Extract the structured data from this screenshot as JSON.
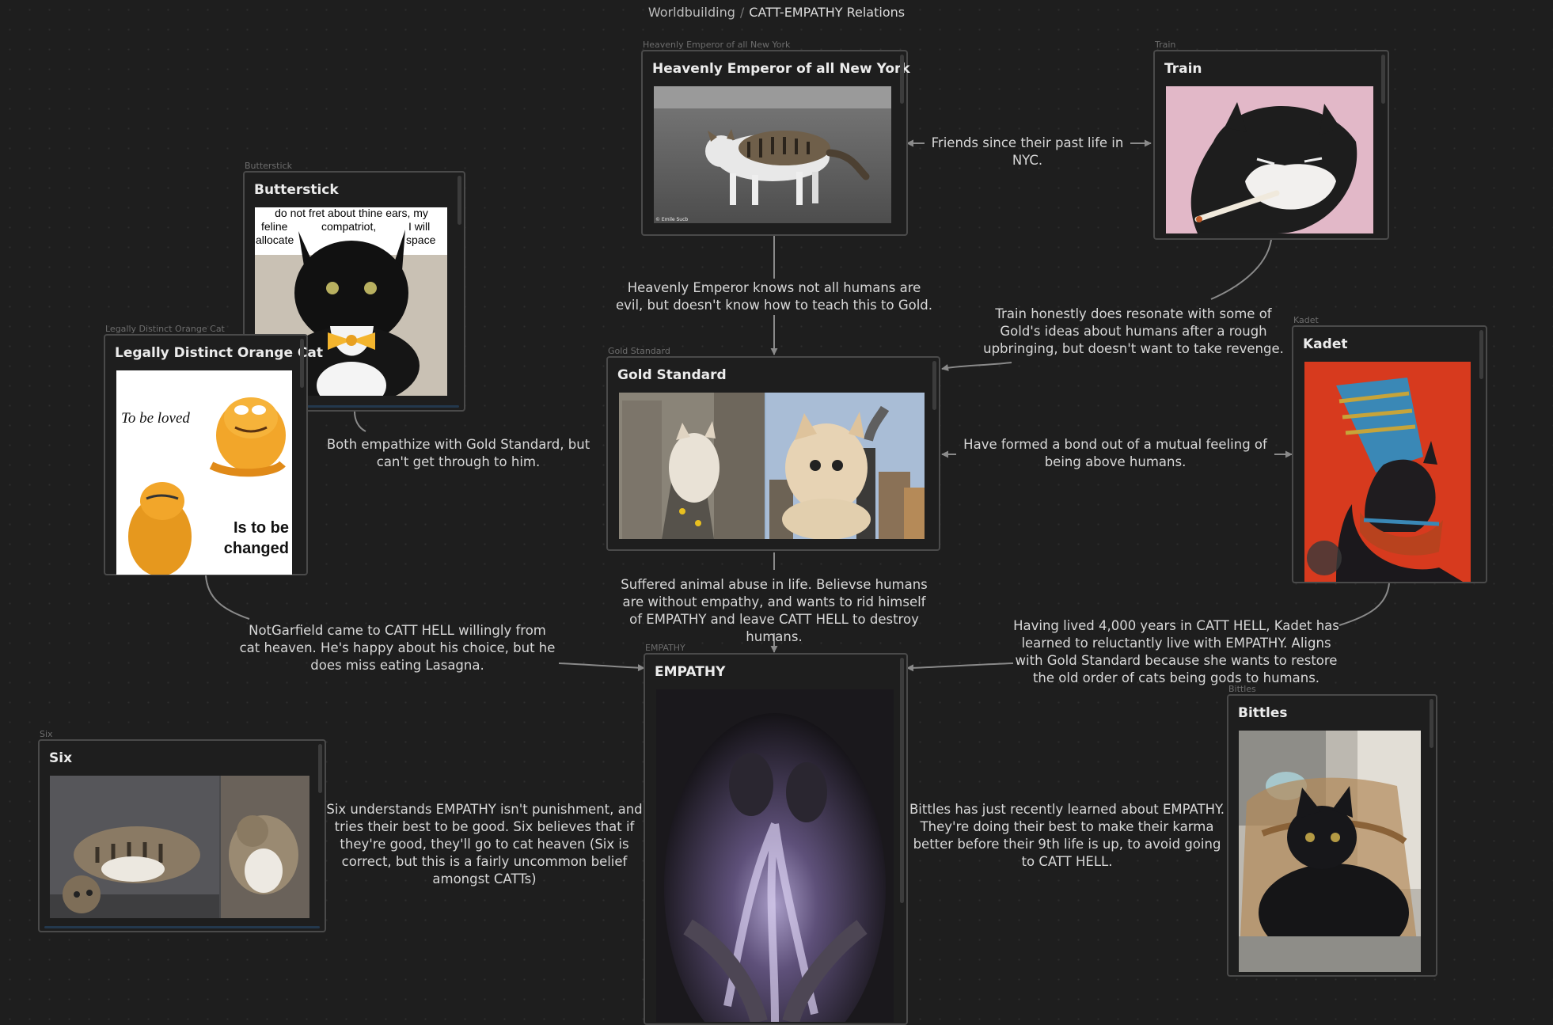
{
  "breadcrumb": {
    "parent": "Worldbuilding",
    "separator": "/",
    "current": "CATT-EMPATHY Relations"
  },
  "nodes": {
    "emperor": {
      "label": "Heavenly Emperor of all New York",
      "title": "Heavenly Emperor of all New York",
      "image": "grey-tabby-white-cat-walking",
      "caption": "© Emile Sucb"
    },
    "train": {
      "label": "Train",
      "title": "Train",
      "image": "black-white-cat-smoking-cigarette"
    },
    "butterstick": {
      "label": "Butterstick",
      "title": "Butterstick",
      "image": "tuxedo-cat-bowtie-meme",
      "meme_lines": [
        "do not fret about thine ears, my",
        "feline",
        "compatriot,",
        "I will",
        "allocate",
        "space"
      ]
    },
    "orange": {
      "label": "Legally Distinct Orange Cat",
      "title": "Legally Distinct Orange Cat",
      "image": "orange-cat-figurines-meme",
      "meme_top": "To be loved",
      "meme_bottom": "Is to be changed"
    },
    "gold": {
      "label": "Gold Standard",
      "title": "Gold Standard",
      "image": "giant-kittens-city-collage"
    },
    "kadet": {
      "label": "Kadet",
      "title": "Kadet",
      "image": "egyptian-cat-painting"
    },
    "empathy": {
      "label": "EMPATHY",
      "title": "EMPATHY",
      "image": "purple-dark-painting"
    },
    "bittles": {
      "label": "Bittles",
      "title": "Bittles",
      "image": "black-cat-wicker-chair"
    },
    "six": {
      "label": "Six",
      "title": "Six",
      "image": "two-tabby-cats-lounging"
    }
  },
  "edges": {
    "emperor_train": "Friends since their past life in NYC.",
    "emperor_gold": "Heavenly Emperor knows not all humans are evil, but doesn't know how to teach this to Gold.",
    "train_gold": "Train honestly does resonate with some of Gold's ideas about humans after a rough upbringing, but doesn't want to take revenge.",
    "butterstick_gold": "Both empathize with Gold Standard, but can't get through to him.",
    "gold_kadet": "Have formed a bond out of a mutual feeling of being above humans.",
    "gold_empathy": "Suffered animal abuse in life. Believse humans are without empathy, and wants to rid himself of EMPATHY and leave CATT HELL to destroy humans.",
    "orange_empathy": "NotGarfield came to CATT HELL willingly from cat heaven. He's happy about his choice, but he does miss eating Lasagna.",
    "kadet_empathy": "Having lived 4,000 years in CATT HELL, Kadet has learned to reluctantly live with EMPATHY. Aligns with Gold Standard because she wants to restore the old order of cats being gods to humans.",
    "six_empathy": "Six understands EMPATHY isn't punishment, and tries their best to be good. Six believes  that if they're good, they'll go to cat heaven (Six is correct, but this is a fairly uncommon belief amongst CATTs)",
    "bittles_empathy": "Bittles has just recently learned about EMPATHY. They're doing their best to make their karma better before their 9th life is up, to avoid going to CATT HELL."
  },
  "colors": {
    "background": "#1e1e1e",
    "card_border": "#4a4a4a",
    "edge": "#8a8a8a",
    "text": "#d8d8d8"
  }
}
